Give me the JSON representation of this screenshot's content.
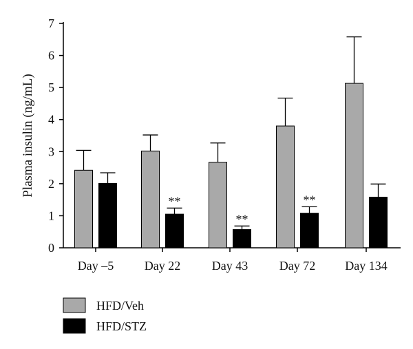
{
  "colors": {
    "series1": "#a9a9a9",
    "series2": "#000000",
    "axis": "#000000"
  },
  "chart_data": {
    "type": "bar",
    "title": "",
    "xlabel": "",
    "ylabel": "Plasma insulin (ng/mL)",
    "ylim": [
      0,
      7
    ],
    "yticks": [
      "0",
      "1",
      "2",
      "3",
      "4",
      "5",
      "6",
      "7"
    ],
    "categories": [
      "Day –5",
      "Day 22",
      "Day 43",
      "Day 72",
      "Day 134"
    ],
    "series": [
      {
        "name": "HFD/Veh",
        "values": [
          2.42,
          3.02,
          2.67,
          3.8,
          5.13
        ],
        "errors": [
          0.62,
          0.5,
          0.6,
          0.87,
          1.45
        ],
        "annotations": [
          "",
          "",
          "",
          "",
          ""
        ]
      },
      {
        "name": "HFD/STZ",
        "values": [
          2.01,
          1.05,
          0.57,
          1.08,
          1.58
        ],
        "errors": [
          0.33,
          0.19,
          0.11,
          0.2,
          0.41
        ],
        "annotations": [
          "",
          "**",
          "**",
          "**",
          ""
        ]
      }
    ],
    "legend_position": "bottom-left",
    "grid": false
  }
}
